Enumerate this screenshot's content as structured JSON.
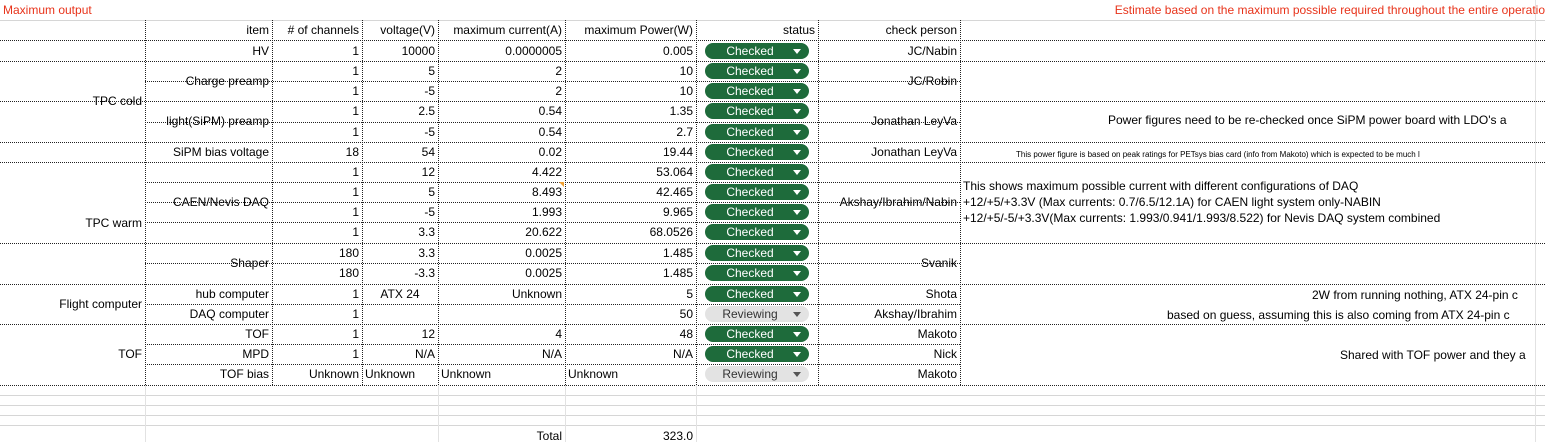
{
  "header_notes": {
    "left": "Maximum output",
    "right": "Estimate based on the maximum possible required throughout the entire operatio"
  },
  "columns": [
    "item",
    "# of channels",
    "voltage(V)",
    "maximum current(A)",
    "maximum Power(W)",
    "status",
    "check person"
  ],
  "groups": [
    "TPC cold",
    "TPC warm",
    "Flight computer",
    "TOF"
  ],
  "rows": [
    {
      "item": "HV",
      "channels": "1",
      "voltage": "10000",
      "current": "0.0000005",
      "power": "0.005",
      "status": "Checked",
      "person": "JC/Nabin"
    },
    {
      "item": "Charge preamp",
      "channels": "1",
      "voltage": "5",
      "current": "2",
      "power": "10",
      "status": "Checked",
      "person": "JC/Robin"
    },
    {
      "item": "",
      "channels": "1",
      "voltage": "-5",
      "current": "2",
      "power": "10",
      "status": "Checked",
      "person": ""
    },
    {
      "item": "light(SiPM) preamp",
      "channels": "1",
      "voltage": "2.5",
      "current": "0.54",
      "power": "1.35",
      "status": "Checked",
      "person": "Jonathan LeyVa"
    },
    {
      "item": "",
      "channels": "1",
      "voltage": "-5",
      "current": "0.54",
      "power": "2.7",
      "status": "Checked",
      "person": ""
    },
    {
      "item": "SiPM bias voltage",
      "channels": "18",
      "voltage": "54",
      "current": "0.02",
      "power": "19.44",
      "status": "Checked",
      "person": "Jonathan LeyVa"
    },
    {
      "item": "CAEN/Nevis DAQ",
      "channels": "1",
      "voltage": "12",
      "current": "4.422",
      "power": "53.064",
      "status": "Checked",
      "person": "Akshay/Ibrahim/Nabin"
    },
    {
      "item": "",
      "channels": "1",
      "voltage": "5",
      "current": "8.493",
      "power": "42.465",
      "status": "Checked",
      "person": ""
    },
    {
      "item": "",
      "channels": "1",
      "voltage": "-5",
      "current": "1.993",
      "power": "9.965",
      "status": "Checked",
      "person": ""
    },
    {
      "item": "",
      "channels": "1",
      "voltage": "3.3",
      "current": "20.622",
      "power": "68.0526",
      "status": "Checked",
      "person": ""
    },
    {
      "item": "Shaper",
      "channels": "180",
      "voltage": "3.3",
      "current": "0.0025",
      "power": "1.485",
      "status": "Checked",
      "person": "Svanik"
    },
    {
      "item": "",
      "channels": "180",
      "voltage": "-3.3",
      "current": "0.0025",
      "power": "1.485",
      "status": "Checked",
      "person": ""
    },
    {
      "item": "hub computer",
      "channels": "1",
      "voltage": "ATX 24",
      "current": "Unknown",
      "power": "5",
      "status": "Checked",
      "person": "Shota"
    },
    {
      "item": "DAQ computer",
      "channels": "1",
      "voltage": "",
      "current": "",
      "power": "50",
      "status": "Reviewing",
      "person": "Akshay/Ibrahim"
    },
    {
      "item": "TOF",
      "channels": "1",
      "voltage": "12",
      "current": "4",
      "power": "48",
      "status": "Checked",
      "person": "Makoto"
    },
    {
      "item": "MPD",
      "channels": "1",
      "voltage": "N/A",
      "current": "N/A",
      "power": "N/A",
      "status": "Checked",
      "person": "Nick"
    },
    {
      "item": "TOF bias",
      "channels": "Unknown",
      "voltage": "Unknown",
      "current": "Unknown",
      "power": "Unknown",
      "status": "Reviewing",
      "person": "Makoto"
    }
  ],
  "notes": {
    "sipm_power": "Power figures need to be re-checked once SiPM power board with LDO's a",
    "sipm_bias": "This power figure is based on peak ratings for PETsys bias card (info from Makoto) which is expected to be much l",
    "daq_line1": "This shows maximum possible current with different configurations of DAQ",
    "daq_line2": "+12/+5/+3.3V (Max currents: 0.7/6.5/12.1A) for CAEN light system only-NABIN",
    "daq_line3": "+12/+5/-5/+3.3V(Max currents: 1.993/0.941/1.993/8.522) for Nevis DAQ system combined",
    "hub": "2W from running nothing, ATX 24-pin c",
    "daq_comp": "based on guess, assuming this is also coming from ATX 24-pin c",
    "mpd": "Shared with TOF power and they a"
  },
  "total": {
    "label": "Total",
    "value": "323.0"
  },
  "colors": {
    "checked": "#1e6b3b",
    "reviewing": "#e3e3e3",
    "red_note": "#e8331a"
  }
}
